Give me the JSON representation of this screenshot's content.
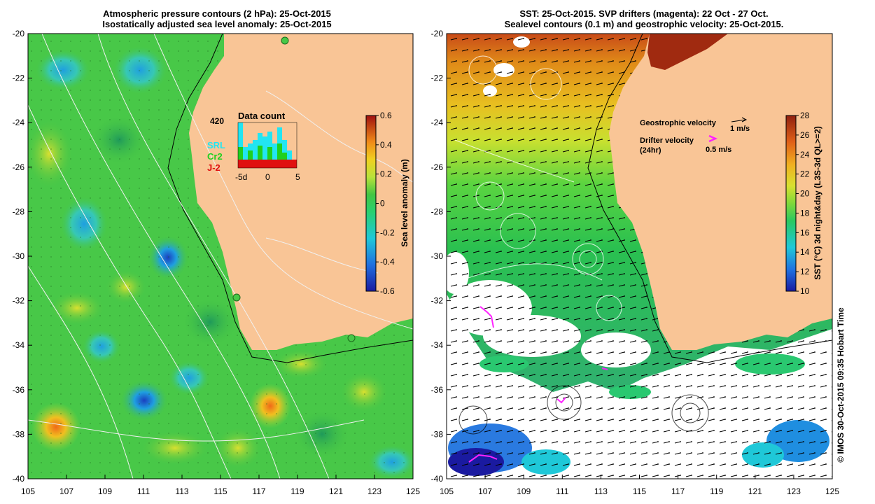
{
  "left_panel": {
    "title_line1": "Atmospheric pressure contours (2 hPa): 25-Oct-2015",
    "title_line2": "Isostatically adjusted sea level anomaly: 25-Oct-2015",
    "colorbar_label": "Sea level anomaly (m)",
    "colorbar_ticks": [
      "0.6",
      "0.4",
      "0.2",
      "0",
      "-0.2",
      "-0.4",
      "-0.6"
    ],
    "inset": {
      "title": "Data count",
      "ymax_label": "420",
      "legend": [
        {
          "label": "SRL",
          "color": "#22e5f2"
        },
        {
          "label": "Cr2",
          "color": "#1fd01f"
        },
        {
          "label": "J-2",
          "color": "#e01010"
        }
      ],
      "x_ticks": [
        "-5d",
        "0",
        "5"
      ]
    }
  },
  "right_panel": {
    "title_line1": "SST: 25-Oct-2015. SVP drifters (magenta): 22 Oct - 27 Oct.",
    "title_line2": "Sealevel contours (0.1 m) and geostrophic velocity: 25-Oct-2015.",
    "geo_velocity_label": "Geostrophic velocity",
    "geo_velocity_scale": "1 m/s",
    "drifter_label_line1": "Drifter velocity",
    "drifter_label_line2": "(24hr)",
    "drifter_scale": "0.5 m/s",
    "colorbar_label": "SST (°C) 3d night&day (L3S-3d QL>=2)",
    "colorbar_ticks": [
      "28",
      "26",
      "24",
      "22",
      "20",
      "18",
      "16",
      "14",
      "12",
      "10"
    ],
    "credit": "© IMOS 30-Oct-2015 09:35 Hobart Time"
  },
  "axes": {
    "y_ticks": [
      "-20",
      "-22",
      "-24",
      "-26",
      "-28",
      "-30",
      "-32",
      "-34",
      "-36",
      "-38",
      "-40"
    ],
    "x_ticks": [
      "105",
      "107",
      "109",
      "111",
      "113",
      "115",
      "117",
      "119",
      "121",
      "123",
      "125"
    ]
  },
  "colors": {
    "land": "#f9c596",
    "ocean_green": "#4cd24c",
    "sst_warm": "#e89a18",
    "magenta": "#ff22ff"
  }
}
